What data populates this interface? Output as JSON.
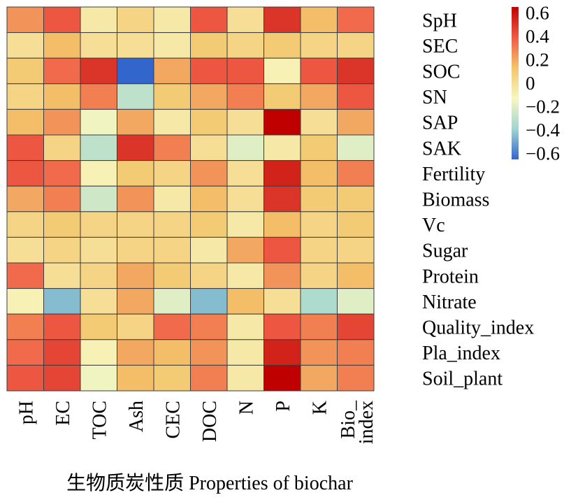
{
  "chart_data": {
    "type": "heatmap",
    "xlabel": "生物质炭性质 Properties of biochar",
    "ylabel": "",
    "x_categories": [
      "pH",
      "EC",
      "TOC",
      "Ash",
      "CEC",
      "DOC",
      "N",
      "P",
      "K",
      "Bio_index"
    ],
    "x_tick_labels": [
      [
        "pH"
      ],
      [
        "EC"
      ],
      [
        "TOC"
      ],
      [
        "Ash"
      ],
      [
        "CEC"
      ],
      [
        "DOC"
      ],
      [
        "N"
      ],
      [
        "P"
      ],
      [
        "K"
      ],
      [
        "Bio_",
        "index"
      ]
    ],
    "y_categories": [
      "SpH",
      "SEC",
      "SOC",
      "SN",
      "SAP",
      "SAK",
      "Fertility",
      "Biomass",
      "Vc",
      "Sugar",
      "Protein",
      "Nitrate",
      "Quality_index",
      "Pla_index",
      "Soil_plant"
    ],
    "values": [
      [
        0.25,
        0.4,
        -0.05,
        0.05,
        -0.05,
        0.4,
        0.0,
        0.5,
        0.15,
        0.35
      ],
      [
        0.0,
        0.15,
        0.0,
        0.0,
        -0.05,
        0.1,
        0.05,
        0.1,
        0.05,
        0.05
      ],
      [
        0.1,
        0.35,
        0.5,
        -0.65,
        0.2,
        0.4,
        0.4,
        -0.1,
        0.4,
        0.5
      ],
      [
        0.05,
        0.15,
        0.3,
        -0.3,
        0.1,
        0.2,
        0.3,
        0.1,
        0.2,
        0.4
      ],
      [
        0.15,
        0.25,
        -0.15,
        0.2,
        -0.05,
        0.1,
        0.0,
        0.65,
        0.0,
        0.2
      ],
      [
        0.4,
        0.05,
        -0.3,
        0.5,
        0.3,
        0.0,
        -0.2,
        -0.05,
        0.1,
        -0.2
      ],
      [
        0.4,
        0.35,
        -0.1,
        0.1,
        0.05,
        0.25,
        0.0,
        0.55,
        0.15,
        0.3
      ],
      [
        0.2,
        0.3,
        -0.25,
        0.25,
        -0.05,
        0.15,
        0.0,
        0.5,
        0.1,
        0.1
      ],
      [
        0.05,
        0.1,
        0.05,
        0.05,
        0.05,
        0.1,
        -0.05,
        0.15,
        0.05,
        0.1
      ],
      [
        0.0,
        0.05,
        0.0,
        0.05,
        0.05,
        -0.05,
        0.2,
        0.4,
        0.05,
        0.05
      ],
      [
        0.35,
        0.0,
        0.05,
        0.2,
        0.1,
        0.05,
        -0.05,
        0.25,
        0.05,
        0.15
      ],
      [
        -0.1,
        -0.45,
        0.0,
        0.2,
        -0.2,
        -0.45,
        0.15,
        0.0,
        -0.35,
        -0.2
      ],
      [
        0.3,
        0.4,
        0.1,
        0.05,
        0.35,
        0.3,
        -0.05,
        0.4,
        0.3,
        0.45
      ],
      [
        0.35,
        0.45,
        -0.1,
        0.2,
        0.15,
        0.25,
        -0.05,
        0.55,
        0.25,
        0.3
      ],
      [
        0.4,
        0.45,
        -0.15,
        0.15,
        0.1,
        0.3,
        -0.05,
        0.65,
        0.2,
        0.3
      ]
    ],
    "colorbar": {
      "ticks": [
        0.6,
        0.4,
        0.2,
        0,
        -0.2,
        -0.4,
        -0.6
      ],
      "tick_labels": [
        "0.6",
        "0.4",
        "0.2",
        "0",
        "−0.2",
        "−0.4",
        "−0.6"
      ],
      "range": [
        -0.65,
        0.65
      ],
      "colors": [
        "#3366cc",
        "#9fd6d0",
        "#f7f7c0",
        "#f4c56b",
        "#ef5a45",
        "#c00000"
      ]
    }
  }
}
